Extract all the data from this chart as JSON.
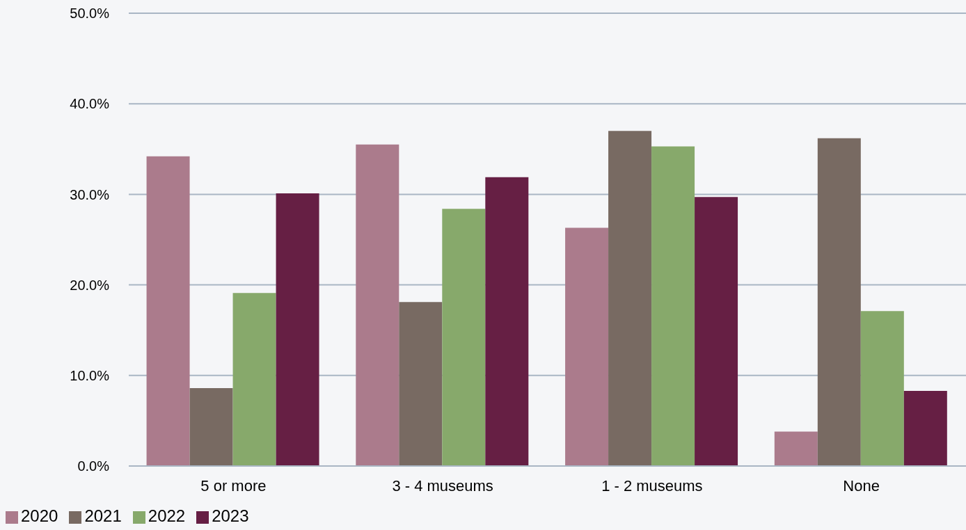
{
  "chart_data": {
    "type": "bar",
    "categories": [
      "5 or more",
      "3 - 4 museums",
      "1 - 2 museums",
      "None"
    ],
    "series": [
      {
        "name": "2020",
        "color": "#ab7b8c",
        "values": [
          34.2,
          35.5,
          26.3,
          3.8
        ]
      },
      {
        "name": "2021",
        "color": "#786a62",
        "values": [
          8.6,
          18.1,
          37.0,
          36.2
        ]
      },
      {
        "name": "2022",
        "color": "#87a96b",
        "values": [
          19.1,
          28.4,
          35.3,
          17.1
        ]
      },
      {
        "name": "2023",
        "color": "#661f44",
        "values": [
          30.1,
          31.9,
          29.7,
          8.3
        ]
      }
    ],
    "ylim": [
      0,
      50
    ],
    "yticks": [
      {
        "value": 0,
        "label": "0.0%"
      },
      {
        "value": 10,
        "label": "10.0%"
      },
      {
        "value": 20,
        "label": "20.0%"
      },
      {
        "value": 30,
        "label": "30.0%"
      },
      {
        "value": 40,
        "label": "40.0%"
      },
      {
        "value": 50,
        "label": "50.0%"
      }
    ],
    "grid": "y",
    "legend": "bottom left"
  }
}
